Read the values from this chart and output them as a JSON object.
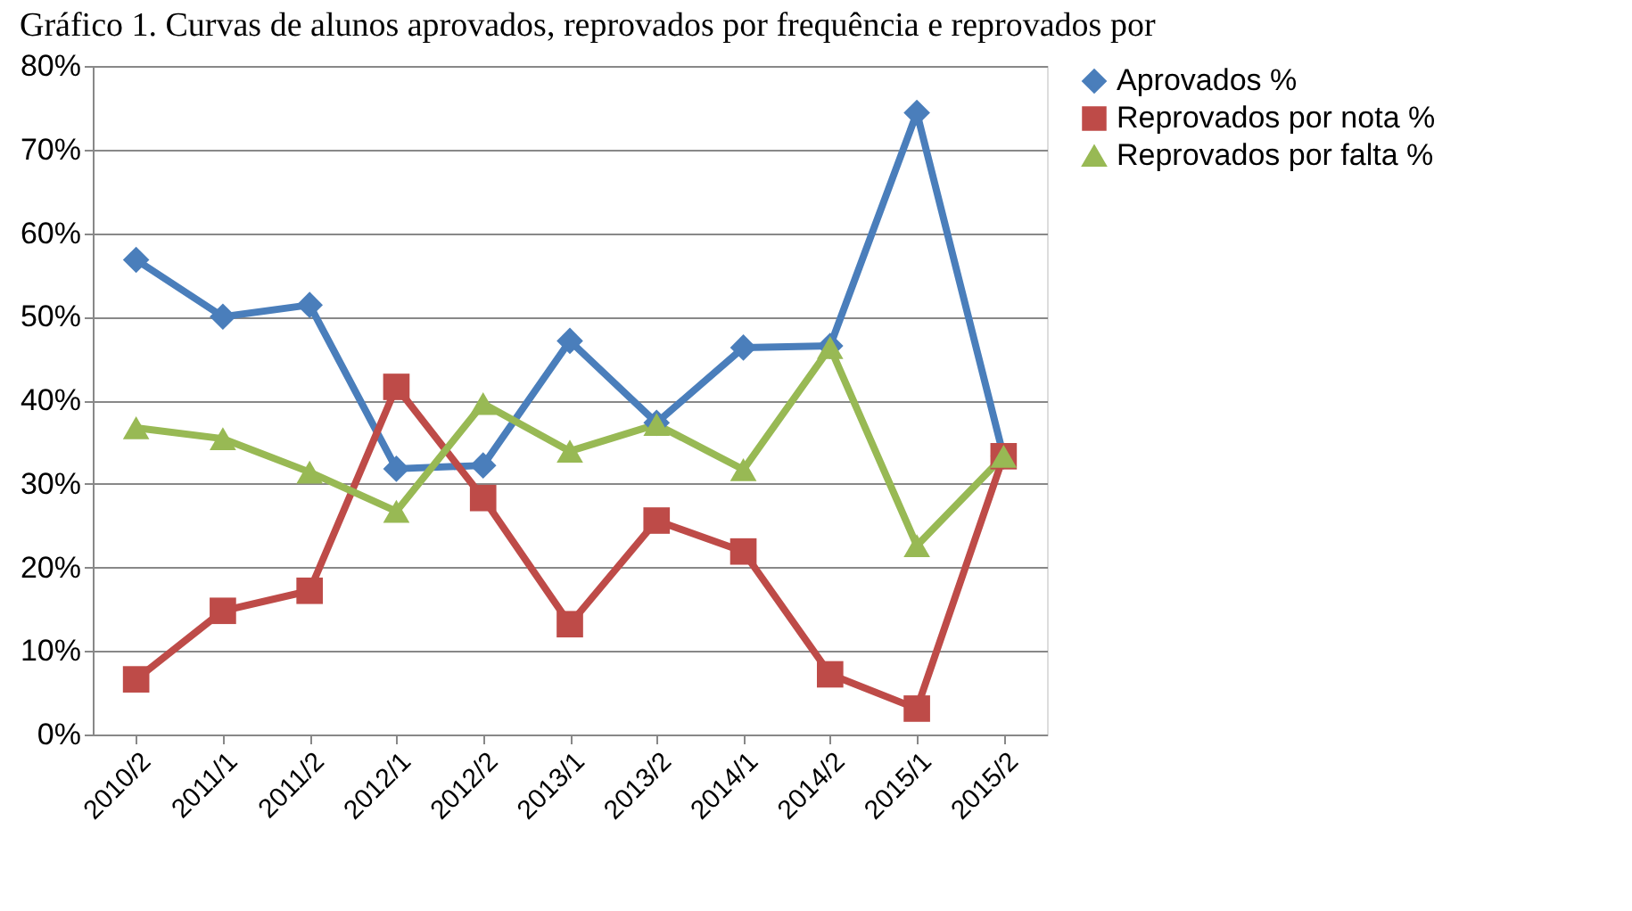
{
  "chart_data": {
    "type": "line",
    "title": "Gráfico 1. Curvas de alunos aprovados, reprovados por frequência e reprovados por",
    "categories": [
      "2010/2",
      "2011/1",
      "2011/2",
      "2012/1",
      "2012/2",
      "2013/1",
      "2013/2",
      "2014/1",
      "2014/2",
      "2015/1",
      "2015/2"
    ],
    "series": [
      {
        "name": "Aprovados %",
        "color": "#4a7ebb",
        "marker": "diamond",
        "values": [
          56.8,
          50,
          51.4,
          31.8,
          32.2,
          47.1,
          37.3,
          46.3,
          46.5,
          74.4,
          33.3
        ]
      },
      {
        "name": "Reprovados por nota %",
        "color": "#be4b48",
        "marker": "square",
        "values": [
          6.6,
          14.8,
          17.2,
          41.6,
          28.3,
          13.2,
          25.6,
          21.9,
          7.2,
          3.1,
          33.3
        ]
      },
      {
        "name": "Reprovados por falta %",
        "color": "#98b954",
        "marker": "triangle",
        "values": [
          36.7,
          35.4,
          31.4,
          26.7,
          39.6,
          33.9,
          37.1,
          31.7,
          46.3,
          22.6,
          33.3
        ]
      }
    ],
    "ylim": [
      0,
      80
    ],
    "yticks": [
      {
        "value": 0,
        "label": "0%"
      },
      {
        "value": 10,
        "label": "10%"
      },
      {
        "value": 20,
        "label": "20%"
      },
      {
        "value": 30,
        "label": "30%"
      },
      {
        "value": 40,
        "label": "40%"
      },
      {
        "value": 50,
        "label": "50%"
      },
      {
        "value": 60,
        "label": "60%"
      },
      {
        "value": 70,
        "label": "70%"
      },
      {
        "value": 80,
        "label": "80%"
      }
    ],
    "grid": "y",
    "legend": "right",
    "line_style": "solid"
  }
}
